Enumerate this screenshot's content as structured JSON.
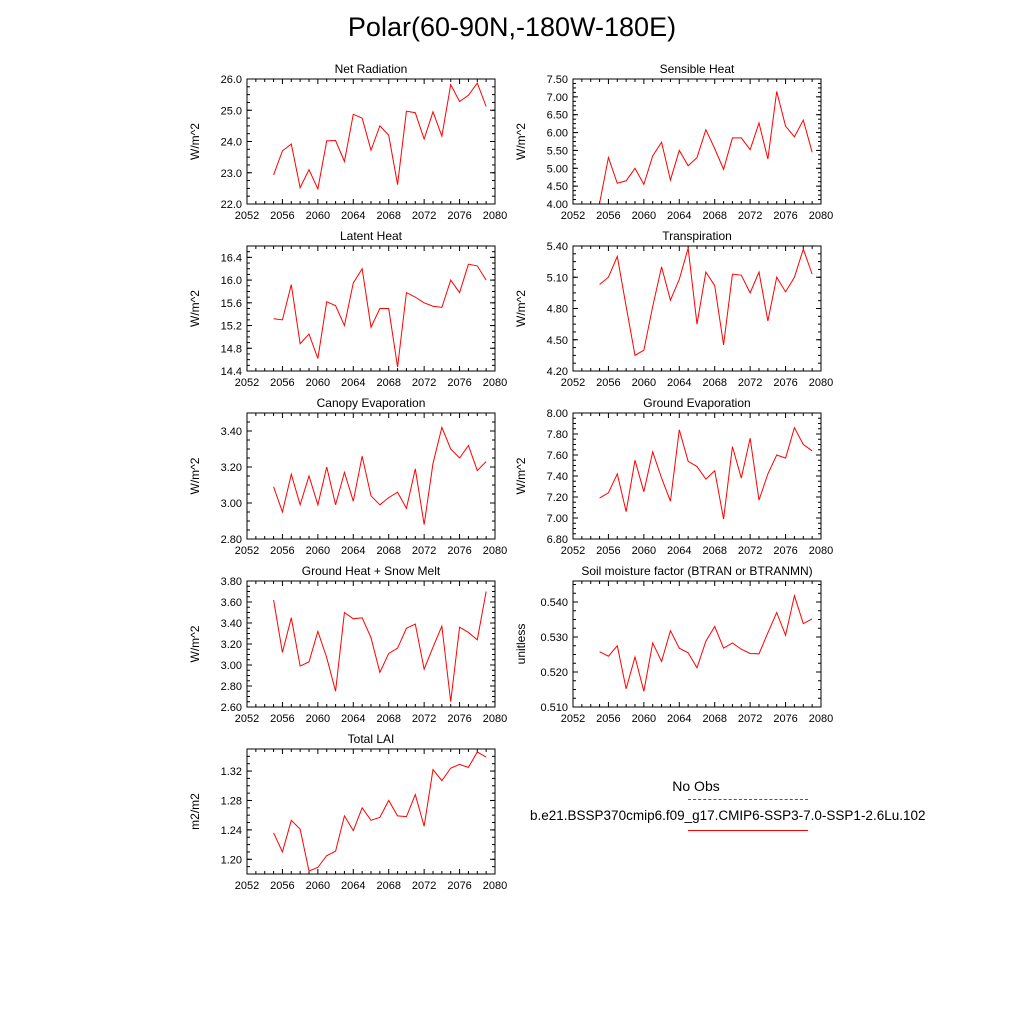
{
  "title": "Polar(60-90N,-180W-180E)",
  "colors": {
    "model": "#ff0000",
    "obs": "#4d4d99",
    "axis": "#000000"
  },
  "legend": {
    "obs_label": "No Obs",
    "case_label": "b.e21.BSSP370cmip6.f09_g17.CMIP6-SSP3-7.0-SSP1-2.6Lu.102"
  },
  "chart_data": [
    {
      "type": "line",
      "title": "Net Radiation",
      "ylabel": "W/m^2",
      "xlim": [
        2052,
        2080
      ],
      "xticks": [
        "2052",
        "2056",
        "2060",
        "2064",
        "2068",
        "2072",
        "2076",
        "2080"
      ],
      "ylim": [
        22.0,
        26.0
      ],
      "yticks": [
        "22.0",
        "23.0",
        "24.0",
        "25.0",
        "26.0"
      ],
      "x": [
        2055,
        2056,
        2057,
        2058,
        2059,
        2060,
        2061,
        2062,
        2063,
        2064,
        2065,
        2066,
        2067,
        2068,
        2069,
        2070,
        2071,
        2072,
        2073,
        2074,
        2075,
        2076,
        2077,
        2078,
        2079
      ],
      "series": [
        {
          "values": [
            22.93,
            23.7,
            23.92,
            22.52,
            23.1,
            22.48,
            24.02,
            24.03,
            23.36,
            24.87,
            24.75,
            23.72,
            24.5,
            24.2,
            22.62,
            24.97,
            24.92,
            24.08,
            24.95,
            24.17,
            25.82,
            25.28,
            25.48,
            25.87,
            25.12
          ]
        }
      ]
    },
    {
      "type": "line",
      "title": "Sensible Heat",
      "ylabel": "W/m^2",
      "xlim": [
        2052,
        2080
      ],
      "xticks": [
        "2052",
        "2056",
        "2060",
        "2064",
        "2068",
        "2072",
        "2076",
        "2080"
      ],
      "ylim": [
        4.0,
        7.5
      ],
      "yticks": [
        "4.00",
        "4.50",
        "5.00",
        "5.50",
        "6.00",
        "6.50",
        "7.00",
        "7.50"
      ],
      "x": [
        2055,
        2056,
        2057,
        2058,
        2059,
        2060,
        2061,
        2062,
        2063,
        2064,
        2065,
        2066,
        2067,
        2068,
        2069,
        2070,
        2071,
        2072,
        2073,
        2074,
        2075,
        2076,
        2077,
        2078,
        2079
      ],
      "series": [
        {
          "values": [
            4.02,
            5.3,
            4.58,
            4.65,
            5.0,
            4.55,
            5.35,
            5.73,
            4.67,
            5.5,
            5.07,
            5.3,
            6.08,
            5.55,
            4.97,
            5.85,
            5.85,
            5.52,
            6.27,
            5.26,
            7.15,
            6.18,
            5.88,
            6.35,
            5.45
          ]
        }
      ]
    },
    {
      "type": "line",
      "title": "Latent Heat",
      "ylabel": "W/m^2",
      "xlim": [
        2052,
        2080
      ],
      "xticks": [
        "2052",
        "2056",
        "2060",
        "2064",
        "2068",
        "2072",
        "2076",
        "2080"
      ],
      "ylim": [
        14.4,
        16.6
      ],
      "yticks": [
        "14.4",
        "14.8",
        "15.2",
        "15.6",
        "16.0",
        "16.4"
      ],
      "x": [
        2055,
        2056,
        2057,
        2058,
        2059,
        2060,
        2061,
        2062,
        2063,
        2064,
        2065,
        2066,
        2067,
        2068,
        2069,
        2070,
        2071,
        2072,
        2073,
        2074,
        2075,
        2076,
        2077,
        2078,
        2079
      ],
      "series": [
        {
          "values": [
            15.32,
            15.3,
            15.92,
            14.88,
            15.05,
            14.62,
            15.62,
            15.55,
            15.2,
            15.95,
            16.2,
            15.17,
            15.5,
            15.5,
            14.47,
            15.78,
            15.7,
            15.6,
            15.54,
            15.52,
            16.0,
            15.78,
            16.28,
            16.25,
            16.0
          ]
        }
      ]
    },
    {
      "type": "line",
      "title": "Transpiration",
      "ylabel": "W/m^2",
      "xlim": [
        2052,
        2080
      ],
      "xticks": [
        "2052",
        "2056",
        "2060",
        "2064",
        "2068",
        "2072",
        "2076",
        "2080"
      ],
      "ylim": [
        4.2,
        5.4
      ],
      "yticks": [
        "4.20",
        "4.50",
        "4.80",
        "5.10",
        "5.40"
      ],
      "x": [
        2055,
        2056,
        2057,
        2058,
        2059,
        2060,
        2061,
        2062,
        2063,
        2064,
        2065,
        2066,
        2067,
        2068,
        2069,
        2070,
        2071,
        2072,
        2073,
        2074,
        2075,
        2076,
        2077,
        2078,
        2079
      ],
      "series": [
        {
          "values": [
            5.03,
            5.1,
            5.3,
            4.82,
            4.35,
            4.4,
            4.82,
            5.2,
            4.88,
            5.08,
            5.38,
            4.65,
            5.15,
            5.02,
            4.45,
            5.13,
            5.12,
            4.95,
            5.15,
            4.68,
            5.1,
            4.96,
            5.1,
            5.37,
            5.13
          ]
        }
      ]
    },
    {
      "type": "line",
      "title": "Canopy Evaporation",
      "ylabel": "W/m^2",
      "xlim": [
        2052,
        2080
      ],
      "xticks": [
        "2052",
        "2056",
        "2060",
        "2064",
        "2068",
        "2072",
        "2076",
        "2080"
      ],
      "ylim": [
        2.8,
        3.5
      ],
      "yticks": [
        "2.80",
        "3.00",
        "3.20",
        "3.40"
      ],
      "x": [
        2055,
        2056,
        2057,
        2058,
        2059,
        2060,
        2061,
        2062,
        2063,
        2064,
        2065,
        2066,
        2067,
        2068,
        2069,
        2070,
        2071,
        2072,
        2073,
        2074,
        2075,
        2076,
        2077,
        2078,
        2079
      ],
      "series": [
        {
          "values": [
            3.09,
            2.95,
            3.16,
            2.99,
            3.15,
            2.99,
            3.2,
            2.99,
            3.17,
            3.01,
            3.26,
            3.04,
            2.99,
            3.03,
            3.06,
            2.97,
            3.19,
            2.88,
            3.22,
            3.42,
            3.3,
            3.25,
            3.32,
            3.18,
            3.23
          ]
        }
      ]
    },
    {
      "type": "line",
      "title": "Ground Evaporation",
      "ylabel": "W/m^2",
      "xlim": [
        2052,
        2080
      ],
      "xticks": [
        "2052",
        "2056",
        "2060",
        "2064",
        "2068",
        "2072",
        "2076",
        "2080"
      ],
      "ylim": [
        6.8,
        8.0
      ],
      "yticks": [
        "6.80",
        "7.00",
        "7.20",
        "7.40",
        "7.60",
        "7.80",
        "8.00"
      ],
      "x": [
        2055,
        2056,
        2057,
        2058,
        2059,
        2060,
        2061,
        2062,
        2063,
        2064,
        2065,
        2066,
        2067,
        2068,
        2069,
        2070,
        2071,
        2072,
        2073,
        2074,
        2075,
        2076,
        2077,
        2078,
        2079
      ],
      "series": [
        {
          "values": [
            7.19,
            7.24,
            7.42,
            7.06,
            7.55,
            7.25,
            7.63,
            7.38,
            7.16,
            7.84,
            7.54,
            7.49,
            7.37,
            7.45,
            6.99,
            7.68,
            7.38,
            7.76,
            7.17,
            7.42,
            7.6,
            7.57,
            7.86,
            7.7,
            7.64
          ]
        }
      ]
    },
    {
      "type": "line",
      "title": "Ground Heat + Snow Melt",
      "ylabel": "W/m^2",
      "xlim": [
        2052,
        2080
      ],
      "xticks": [
        "2052",
        "2056",
        "2060",
        "2064",
        "2068",
        "2072",
        "2076",
        "2080"
      ],
      "ylim": [
        2.6,
        3.8
      ],
      "yticks": [
        "2.60",
        "2.80",
        "3.00",
        "3.20",
        "3.40",
        "3.60",
        "3.80"
      ],
      "x": [
        2055,
        2056,
        2057,
        2058,
        2059,
        2060,
        2061,
        2062,
        2063,
        2064,
        2065,
        2066,
        2067,
        2068,
        2069,
        2070,
        2071,
        2072,
        2073,
        2074,
        2075,
        2076,
        2077,
        2078,
        2079
      ],
      "series": [
        {
          "values": [
            3.62,
            3.12,
            3.45,
            2.99,
            3.03,
            3.32,
            3.07,
            2.75,
            3.5,
            3.44,
            3.45,
            3.26,
            2.93,
            3.11,
            3.16,
            3.35,
            3.39,
            2.96,
            3.17,
            3.37,
            2.65,
            3.36,
            3.31,
            3.24,
            3.7
          ]
        }
      ]
    },
    {
      "type": "line",
      "title": "Soil moisture factor (BTRAN or BTRANMN)",
      "ylabel": "unitless",
      "xlim": [
        2052,
        2080
      ],
      "xticks": [
        "2052",
        "2056",
        "2060",
        "2064",
        "2068",
        "2072",
        "2076",
        "2080"
      ],
      "ylim": [
        0.51,
        0.546
      ],
      "yticks": [
        "0.510",
        "0.520",
        "0.530",
        "0.540"
      ],
      "x": [
        2055,
        2056,
        2057,
        2058,
        2059,
        2060,
        2061,
        2062,
        2063,
        2064,
        2065,
        2066,
        2067,
        2068,
        2069,
        2070,
        2071,
        2072,
        2073,
        2074,
        2075,
        2076,
        2077,
        2078,
        2079
      ],
      "series": [
        {
          "values": [
            0.5258,
            0.5245,
            0.5275,
            0.5152,
            0.5243,
            0.5145,
            0.5283,
            0.523,
            0.5318,
            0.5268,
            0.5255,
            0.5212,
            0.5288,
            0.533,
            0.5268,
            0.5283,
            0.5265,
            0.5253,
            0.5252,
            0.5312,
            0.537,
            0.5305,
            0.5418,
            0.5338,
            0.5352
          ]
        }
      ]
    },
    {
      "type": "line",
      "title": "Total LAI",
      "ylabel": "m2/m2",
      "xlim": [
        2052,
        2080
      ],
      "xticks": [
        "2052",
        "2056",
        "2060",
        "2064",
        "2068",
        "2072",
        "2076",
        "2080"
      ],
      "ylim": [
        1.18,
        1.35
      ],
      "yticks": [
        "1.20",
        "1.24",
        "1.28",
        "1.32"
      ],
      "x": [
        2055,
        2056,
        2057,
        2058,
        2059,
        2060,
        2061,
        2062,
        2063,
        2064,
        2065,
        2066,
        2067,
        2068,
        2069,
        2070,
        2071,
        2072,
        2073,
        2074,
        2075,
        2076,
        2077,
        2078,
        2079
      ],
      "series": [
        {
          "values": [
            1.236,
            1.21,
            1.253,
            1.241,
            1.184,
            1.189,
            1.205,
            1.211,
            1.259,
            1.239,
            1.27,
            1.253,
            1.257,
            1.28,
            1.259,
            1.258,
            1.288,
            1.245,
            1.322,
            1.307,
            1.324,
            1.329,
            1.325,
            1.346,
            1.339
          ]
        }
      ]
    }
  ]
}
